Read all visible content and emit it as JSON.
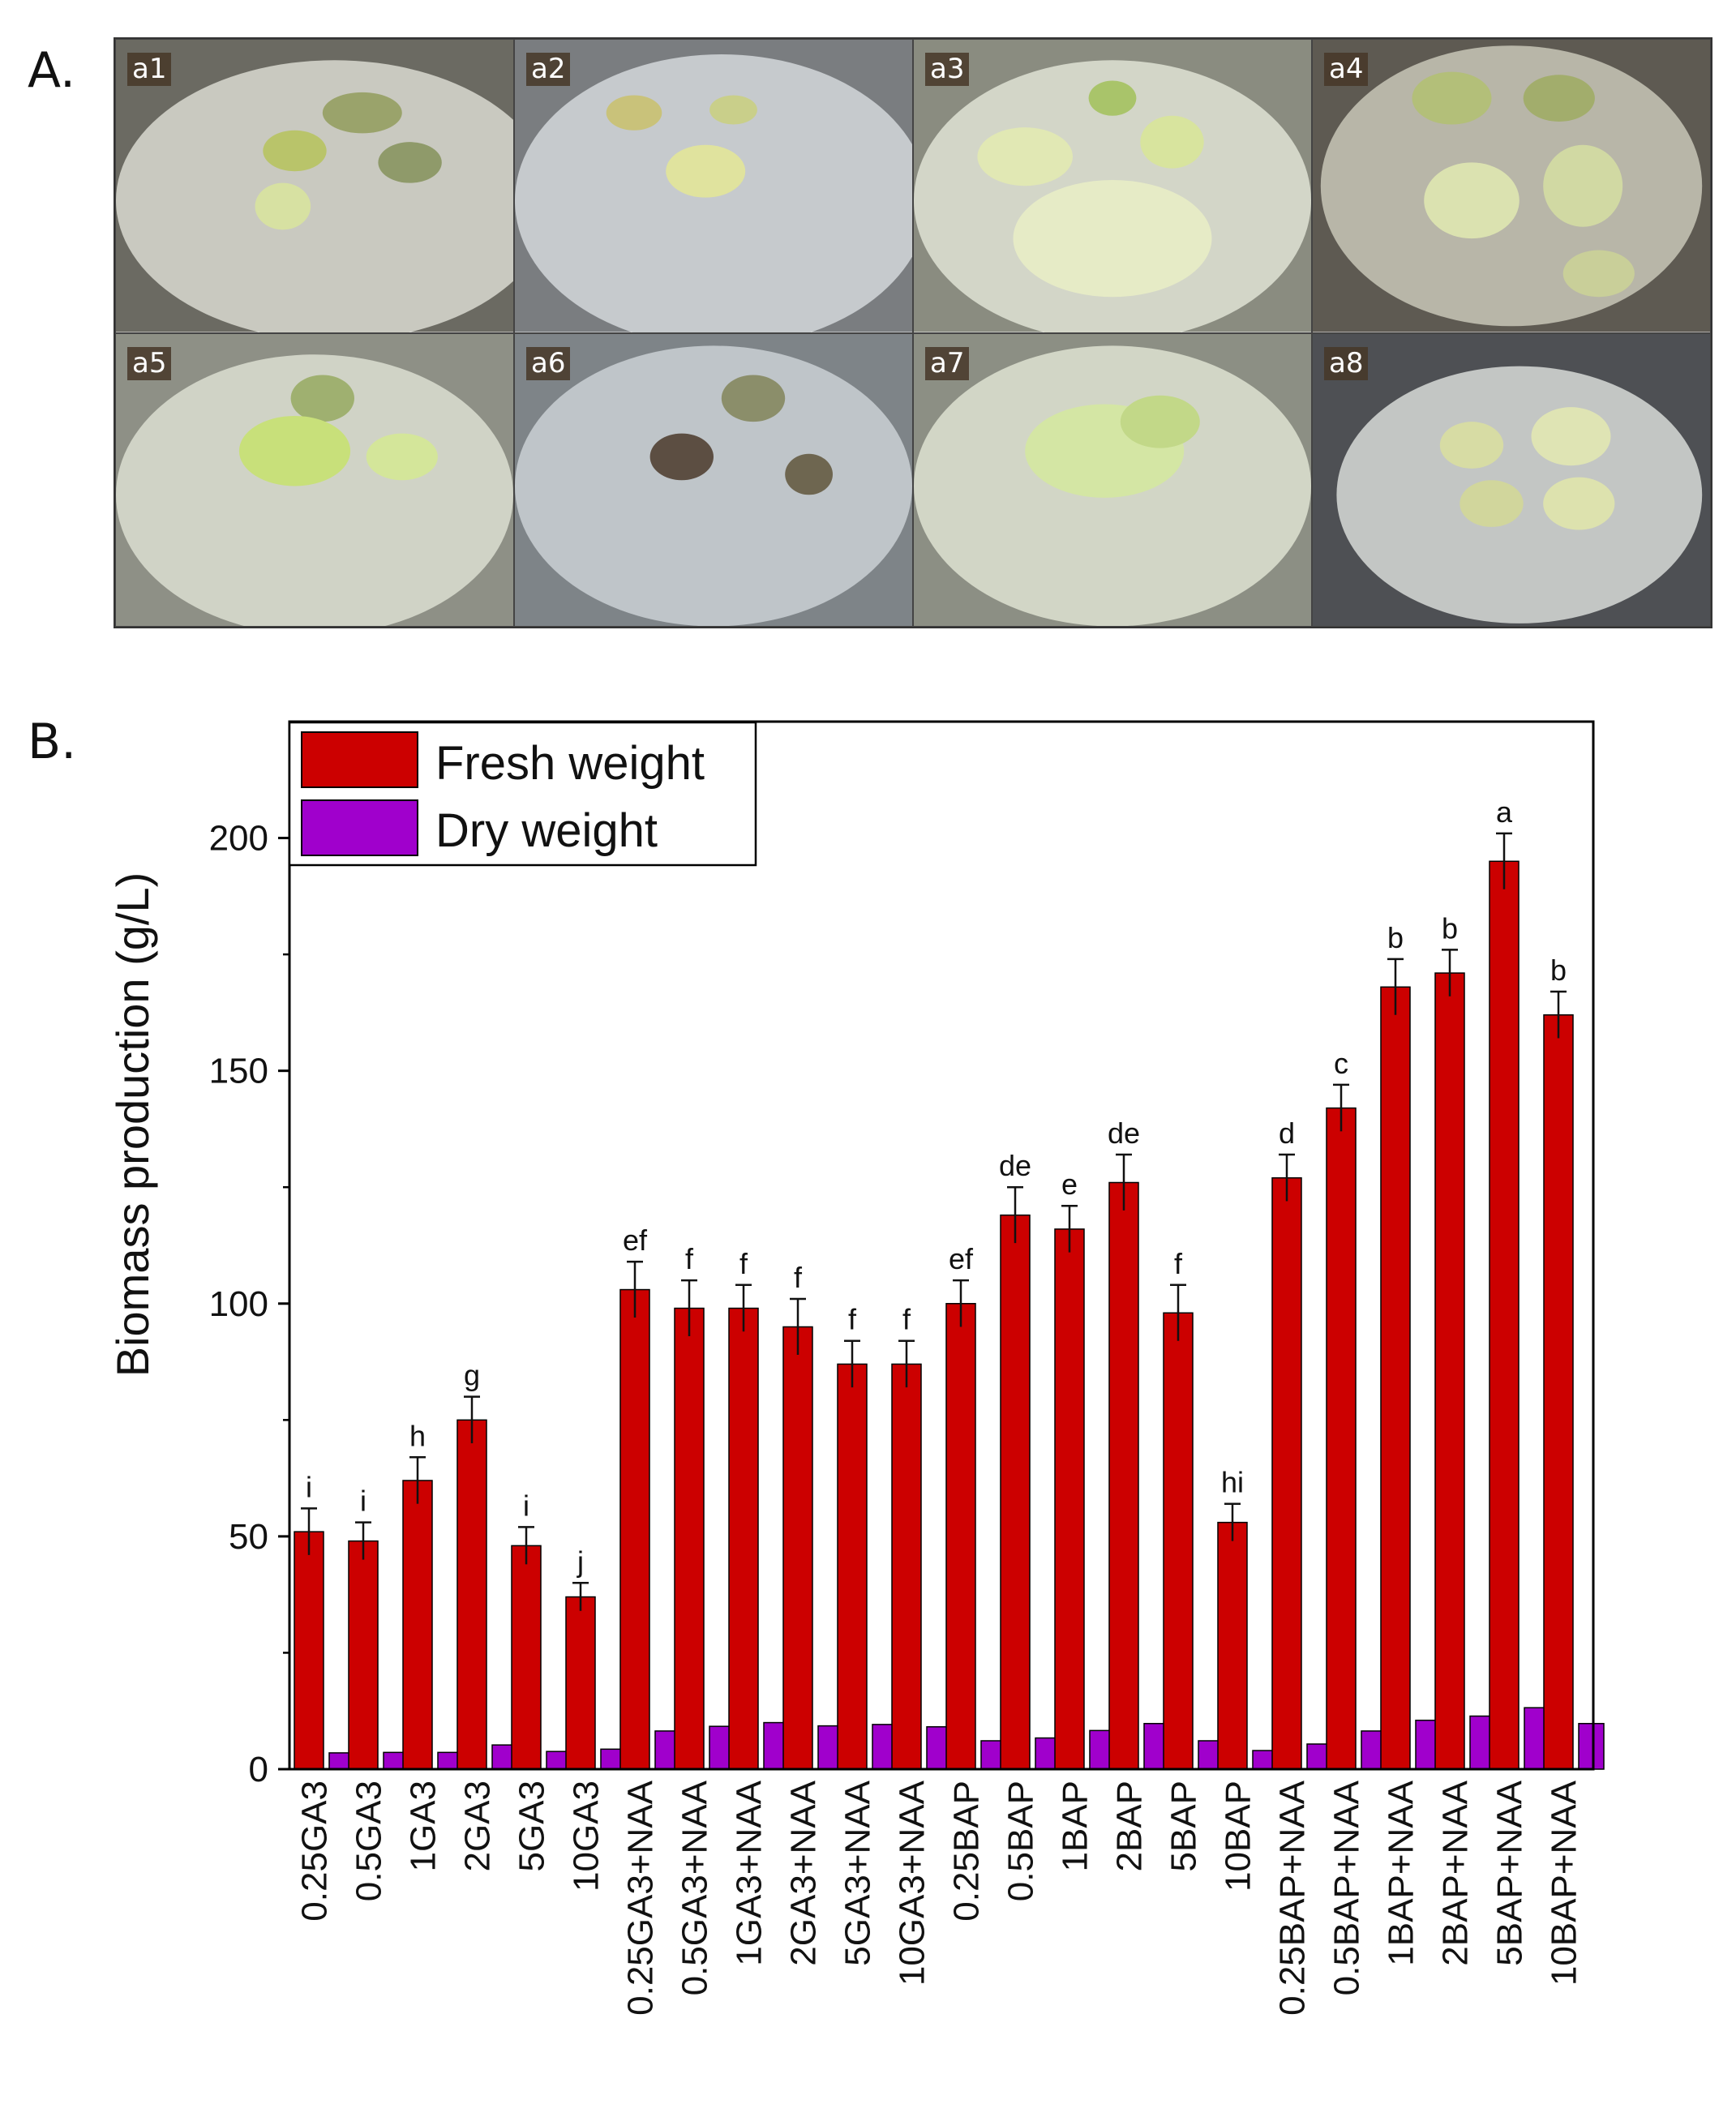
{
  "panel_a": {
    "label": "A.",
    "photos": [
      {
        "label": "a1"
      },
      {
        "label": "a2"
      },
      {
        "label": "a3"
      },
      {
        "label": "a4"
      },
      {
        "label": "a5"
      },
      {
        "label": "a6"
      },
      {
        "label": "a7"
      },
      {
        "label": "a8"
      }
    ]
  },
  "panel_b": {
    "label": "B."
  },
  "colors": {
    "fresh": "#cc0000",
    "dry": "#a000cc"
  },
  "chart_data": {
    "type": "bar",
    "ylabel": "Biomass production (g/L)",
    "xlabel": "",
    "ylim": [
      0,
      225
    ],
    "yticks": [
      0,
      50,
      100,
      150,
      200
    ],
    "legend_position": "top-left",
    "categories": [
      "0.25GA3",
      "0.5GA3",
      "1GA3",
      "2GA3",
      "5GA3",
      "10GA3",
      "0.25GA3+NAA",
      "0.5GA3+NAA",
      "1GA3+NAA",
      "2GA3+NAA",
      "5GA3+NAA",
      "10GA3+NAA",
      "0.25BAP",
      "0.5BAP",
      "1BAP",
      "2BAP",
      "5BAP",
      "10BAP",
      "0.25BAP+NAA",
      "0.5BAP+NAA",
      "1BAP+NAA",
      "2BAP+NAA",
      "5BAP+NAA",
      "10BAP+NAA"
    ],
    "series": [
      {
        "name": "Fresh weight",
        "values": [
          51,
          49,
          62,
          75,
          48,
          37,
          103,
          99,
          99,
          95,
          87,
          87,
          100,
          119,
          116,
          126,
          98,
          53,
          127,
          142,
          168,
          171,
          195,
          162
        ],
        "errors": [
          5,
          4,
          5,
          5,
          4,
          3,
          6,
          6,
          5,
          6,
          5,
          5,
          5,
          6,
          5,
          6,
          6,
          4,
          5,
          5,
          6,
          5,
          6,
          5
        ],
        "letters": [
          "i",
          "i",
          "h",
          "g",
          "i",
          "j",
          "ef",
          "f",
          "f",
          "f",
          "f",
          "f",
          "ef",
          "de",
          "e",
          "de",
          "f",
          "hi",
          "d",
          "c",
          "b",
          "b",
          "a",
          "b"
        ]
      },
      {
        "name": "Dry weight",
        "values": [
          3.5,
          3.6,
          3.6,
          5.2,
          3.8,
          4.3,
          8.2,
          9.2,
          10,
          9.3,
          9.6,
          9.1,
          6.1,
          6.7,
          8.3,
          9.8,
          6.1,
          4,
          5.4,
          8.2,
          10.5,
          11.4,
          13.2,
          9.8
        ]
      }
    ]
  }
}
